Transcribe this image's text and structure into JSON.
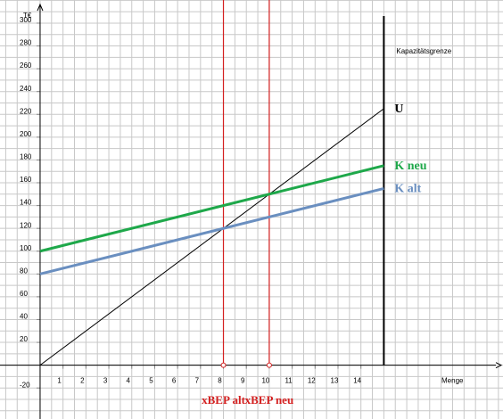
{
  "chart_data": {
    "type": "line",
    "ylabel": "T€",
    "xlabel": "Menge",
    "xlim": [
      -1.75,
      20.2
    ],
    "ylim": [
      -47.2,
      320.3
    ],
    "xticks": [
      1,
      2,
      3,
      4,
      5,
      6,
      7,
      8,
      9,
      10,
      11,
      12,
      13,
      14
    ],
    "yticks": [
      -20,
      20,
      40,
      60,
      80,
      100,
      120,
      140,
      160,
      180,
      200,
      220,
      240,
      260,
      280,
      300
    ],
    "grid": true,
    "series": [
      {
        "name": "U",
        "color": "#000000",
        "x": [
          0,
          15
        ],
        "values": [
          0,
          225
        ]
      },
      {
        "name": "K neu",
        "color": "#1ea84a",
        "x": [
          0,
          15
        ],
        "values": [
          100,
          175
        ]
      },
      {
        "name": "K alt",
        "color": "#6a8fc0",
        "x": [
          0,
          15
        ],
        "values": [
          80,
          155
        ]
      }
    ],
    "capacity": {
      "x": 15,
      "label": "Kapazitätsgrenze"
    },
    "break_even": [
      {
        "x": 8,
        "label": "xBEP alt"
      },
      {
        "x": 10,
        "label": "xBEP neu"
      }
    ]
  }
}
